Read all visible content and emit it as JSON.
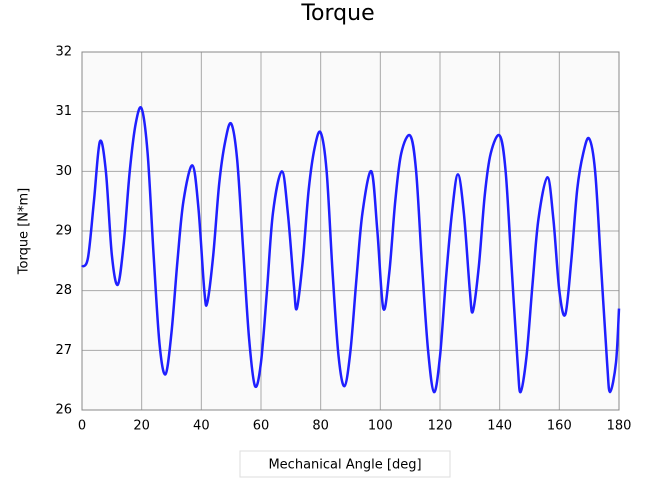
{
  "chart_data": {
    "type": "line",
    "title": "Torque",
    "x_label": "Mechanical Angle [deg]",
    "y_label": "Torque [N*m]",
    "x": [
      0,
      2,
      4,
      6,
      8,
      10,
      12,
      14,
      16,
      18,
      20,
      22,
      24,
      26,
      28,
      30,
      32,
      34,
      37,
      39,
      41,
      42,
      44,
      46,
      48,
      50,
      52,
      54,
      56,
      58,
      60,
      62,
      64,
      67,
      69,
      71,
      72,
      74,
      76,
      78,
      80,
      82,
      84,
      86,
      88,
      90,
      92,
      94,
      97,
      99,
      101,
      103,
      105,
      107,
      110,
      112,
      114,
      116,
      118,
      120,
      122,
      124,
      126,
      128,
      130,
      131,
      133,
      135,
      137,
      140,
      142,
      144,
      146,
      147,
      149,
      151,
      153,
      156,
      158,
      160,
      162,
      164,
      166,
      168,
      170,
      172,
      174,
      176,
      177,
      179,
      180
    ],
    "series": [
      {
        "color": "#1f1fff",
        "values": [
          28.4,
          28.55,
          29.5,
          30.5,
          30.0,
          28.6,
          28.1,
          28.8,
          30.0,
          30.8,
          31.05,
          30.3,
          28.6,
          27.1,
          26.6,
          27.3,
          28.5,
          29.5,
          30.1,
          29.4,
          28.0,
          27.8,
          28.6,
          29.8,
          30.5,
          30.8,
          30.2,
          28.7,
          27.2,
          26.4,
          26.8,
          28.0,
          29.3,
          30.0,
          29.3,
          28.1,
          27.7,
          28.5,
          29.7,
          30.4,
          30.65,
          30.0,
          28.3,
          26.9,
          26.4,
          27.0,
          28.2,
          29.3,
          30.0,
          29.0,
          27.7,
          28.3,
          29.5,
          30.3,
          30.6,
          30.0,
          28.4,
          27.0,
          26.3,
          26.9,
          28.2,
          29.3,
          29.95,
          29.3,
          28.0,
          27.65,
          28.4,
          29.6,
          30.3,
          30.6,
          30.0,
          28.4,
          26.8,
          26.3,
          26.9,
          28.1,
          29.2,
          29.9,
          29.2,
          28.0,
          27.6,
          28.5,
          29.7,
          30.3,
          30.55,
          30.0,
          28.4,
          26.8,
          26.3,
          26.8,
          27.7
        ]
      }
    ],
    "xlim": [
      0,
      180
    ],
    "xticks": [
      0,
      20,
      40,
      60,
      80,
      100,
      120,
      140,
      160,
      180
    ],
    "ylim": [
      26,
      32
    ],
    "yticks": [
      26,
      27,
      28,
      29,
      30,
      31,
      32
    ],
    "grid": true
  }
}
